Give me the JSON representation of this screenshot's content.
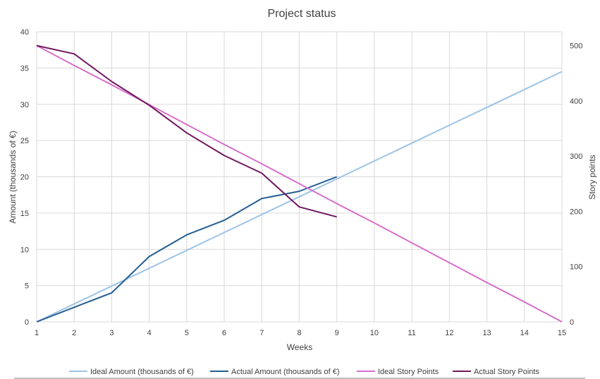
{
  "chart_data": {
    "type": "line",
    "title": "Project status",
    "xlabel": "Weeks",
    "ylabel": "Amount (thousands of €)",
    "y2label": "Story points",
    "x": [
      1,
      2,
      3,
      4,
      5,
      6,
      7,
      8,
      9,
      10,
      11,
      12,
      13,
      14,
      15
    ],
    "xlim": [
      1,
      15
    ],
    "ylim": [
      0,
      40
    ],
    "y2lim": [
      0,
      525
    ],
    "yticks": [
      0,
      5,
      10,
      15,
      20,
      25,
      30,
      35,
      40
    ],
    "y2ticks": [
      0,
      100,
      200,
      300,
      400,
      500
    ],
    "grid": true,
    "legend_position": "bottom",
    "series": [
      {
        "name": "Ideal Amount (thousands of €)",
        "axis": "left",
        "color": "#9DC3E6",
        "x": [
          1,
          2,
          3,
          4,
          5,
          6,
          7,
          8,
          9,
          10,
          11,
          12,
          13,
          14,
          15
        ],
        "values": [
          0,
          2.46,
          4.93,
          7.39,
          9.86,
          12.32,
          14.79,
          17.25,
          19.71,
          22.18,
          24.64,
          27.11,
          29.57,
          32.04,
          34.5
        ]
      },
      {
        "name": "Actual Amount (thousands of €)",
        "axis": "left",
        "color": "#255E91",
        "x": [
          1,
          2,
          3,
          4,
          5,
          6,
          7,
          8,
          9
        ],
        "values": [
          0,
          2,
          4,
          9,
          12,
          14,
          17,
          18,
          20
        ]
      },
      {
        "name": "Ideal Story Points",
        "axis": "right",
        "color": "#D86ECC",
        "x": [
          1,
          2,
          3,
          4,
          5,
          6,
          7,
          8,
          9,
          10,
          11,
          12,
          13,
          14,
          15
        ],
        "values": [
          500,
          464,
          429,
          393,
          357,
          321,
          286,
          250,
          214,
          179,
          143,
          107,
          71,
          36,
          0
        ]
      },
      {
        "name": "Actual Story Points",
        "axis": "right",
        "color": "#70185E",
        "x": [
          1,
          2,
          3,
          4,
          5,
          6,
          7,
          8,
          9
        ],
        "values": [
          500,
          485,
          435,
          392,
          342,
          301,
          269,
          208,
          190
        ]
      }
    ]
  }
}
